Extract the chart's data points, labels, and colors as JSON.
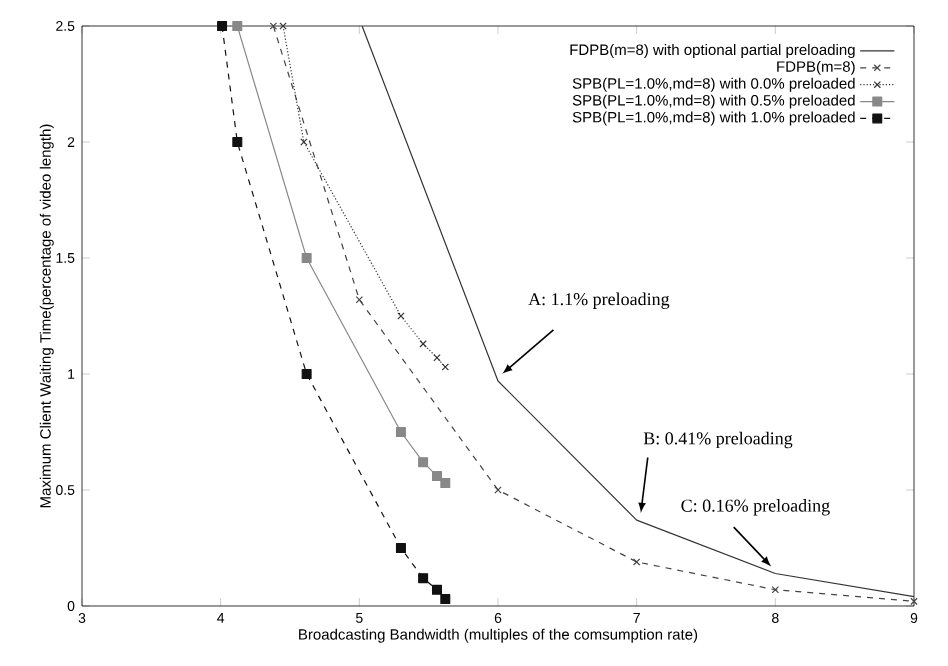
{
  "chart_data": {
    "type": "line",
    "xlabel": "Broadcasting Bandwidth (multiples of the comsumption rate)",
    "ylabel": "Maximum Client Waiting Time(percentage of video length)",
    "xlim": [
      3,
      9
    ],
    "ylim": [
      0,
      2.5
    ],
    "xticks": [
      3,
      4,
      5,
      6,
      7,
      8,
      9
    ],
    "yticks": [
      0,
      0.5,
      1,
      1.5,
      2,
      2.5
    ],
    "legend": "top right",
    "series": [
      {
        "name": "FDPB(m=8) with optional partial preloading",
        "color": "#333333",
        "line_style": "solid",
        "marker": "none",
        "x": [
          5.02,
          6,
          7,
          8,
          9
        ],
        "values": [
          2.5,
          0.97,
          0.37,
          0.14,
          0.04
        ]
      },
      {
        "name": "FDPB(m=8)",
        "color": "#444444",
        "line_style": "dashed",
        "marker": "cross",
        "x": [
          4.38,
          5,
          6,
          7,
          8,
          9
        ],
        "values": [
          2.5,
          1.32,
          0.5,
          0.19,
          0.07,
          0.02
        ]
      },
      {
        "name": "SPB(PL=1.0%,md=8) with 0.0% preloaded",
        "color": "#333333",
        "line_style": "dotted",
        "marker": "cross",
        "x": [
          4.45,
          4.6,
          5.3,
          5.46,
          5.56,
          5.62
        ],
        "values": [
          2.5,
          2.0,
          1.25,
          1.13,
          1.07,
          1.03
        ]
      },
      {
        "name": "SPB(PL=1.0%,md=8) with 0.5% preloaded",
        "color": "#888888",
        "line_style": "solid",
        "marker": "square",
        "x": [
          4.12,
          4.62,
          5.3,
          5.46,
          5.56,
          5.62
        ],
        "values": [
          2.5,
          1.5,
          0.75,
          0.62,
          0.56,
          0.53
        ]
      },
      {
        "name": "SPB(PL=1.0%,md=8) with 1.0% preloaded",
        "color": "#111111",
        "line_style": "dashed",
        "marker": "square",
        "x": [
          4.01,
          4.12,
          4.62,
          5.3,
          5.46,
          5.56,
          5.62
        ],
        "values": [
          2.5,
          2.0,
          1.0,
          0.25,
          0.12,
          0.07,
          0.03
        ]
      }
    ],
    "annotations": [
      {
        "text": "A: 1.1% preloading",
        "x": 6,
        "y": 0.97
      },
      {
        "text": "B: 0.41% preloading",
        "x": 7,
        "y": 0.37
      },
      {
        "text": "C: 0.16% preloading",
        "x": 8,
        "y": 0.14
      }
    ]
  }
}
